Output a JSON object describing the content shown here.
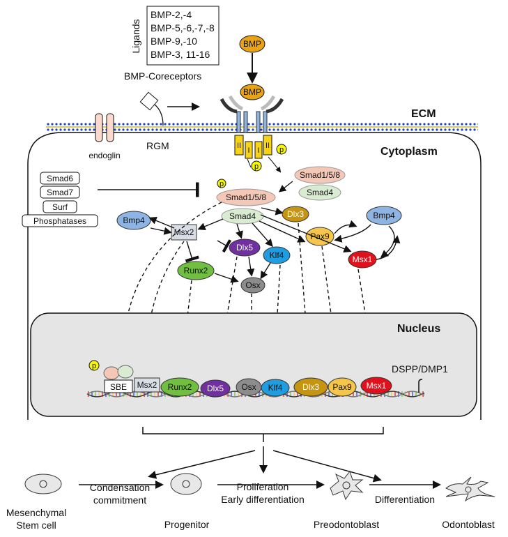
{
  "ligands": {
    "axis_label": "Ligands",
    "items": [
      "BMP-2,-4",
      "BMP-5,-6,-7,-8",
      "BMP-9,-10",
      "BMP-3, 11-16"
    ]
  },
  "coreceptors_label": "BMP-Coreceptors",
  "bmp_label": "BMP",
  "compartments": {
    "ecm": "ECM",
    "cytoplasm": "Cytoplasm",
    "nucleus": "Nucleus"
  },
  "membrane_labels": {
    "endoglin": "endoglin",
    "rgm": "RGM"
  },
  "receptor_labels": {
    "type2": "II",
    "type1": "I",
    "phospho": "p"
  },
  "inhibitors": [
    "Smad6",
    "Smad7",
    "Surf",
    "Phosphatases"
  ],
  "cytoplasm_nodes": {
    "smad158": "Smad1/5/8",
    "smad4": "Smad4",
    "bmp4": "Bmp4",
    "msx2": "Msx2",
    "dlx5": "Dlx5",
    "runx2": "Runx2",
    "osx": "Osx",
    "klf4": "Klf4",
    "dlx3": "Dlx3",
    "pax9": "Pax9",
    "msx1": "Msx1"
  },
  "nucleus": {
    "sbe": "SBE",
    "target_gene": "DSPP/DMP1",
    "factors": [
      "Msx2",
      "Runx2",
      "Dlx5",
      "Osx",
      "Klf4",
      "Dlx3",
      "Pax9",
      "Msx1"
    ]
  },
  "stages": {
    "cells": [
      "Mesenchymal\nStem cell",
      "Progenitor",
      "Preodontoblast",
      "Odontoblast"
    ],
    "transitions": [
      "Condensation\ncommitment",
      "Proliferation\nEarly differentiation",
      "Differentiation"
    ]
  },
  "colors": {
    "bmp": "#e8a317",
    "receptor_yellow": "#f7d417",
    "phospho": "#f7f700",
    "smad158": "#f4c7b6",
    "smad4": "#d9ecd1",
    "bmp4": "#8eb4e3",
    "msx2": "#d9dde6",
    "dlx5": "#7030a0",
    "runx2": "#70bf40",
    "osx": "#8c8c8c",
    "klf4": "#1f9de0",
    "dlx3": "#c59512",
    "pax9": "#f6c64b",
    "msx1": "#e0111c",
    "nucleus_fill": "#e5e5e5",
    "membrane_blue": "#1f3fcc",
    "membrane_yellow": "#c9b82b"
  }
}
